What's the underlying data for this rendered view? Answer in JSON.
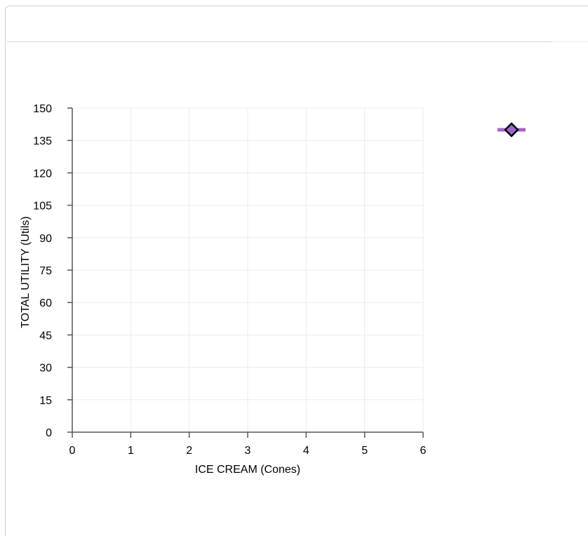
{
  "chart_data": {
    "type": "line",
    "xlabel": "ICE CREAM (Cones)",
    "ylabel": "TOTAL UTILITY (Utils)",
    "xlim": [
      0,
      6
    ],
    "ylim": [
      0,
      150
    ],
    "x_ticks": [
      "0",
      "1",
      "2",
      "3",
      "4",
      "5",
      "6"
    ],
    "y_ticks": [
      "0",
      "15",
      "30",
      "45",
      "60",
      "75",
      "90",
      "105",
      "120",
      "135",
      "150"
    ],
    "grid": true,
    "series": [],
    "legend": {
      "placement": "right",
      "marker": "diamond",
      "marker_fill": "#a064d2",
      "line_color": "#a064d2"
    },
    "colors": {
      "axis": "#555555",
      "grid": "#ececec",
      "marker_outline": "#000000"
    }
  }
}
